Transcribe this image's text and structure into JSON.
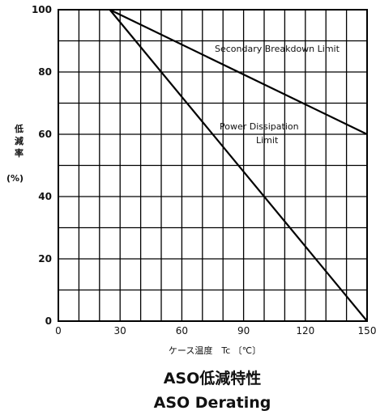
{
  "chart_data": {
    "type": "line",
    "xlim": [
      0,
      150
    ],
    "ylim": [
      0,
      100
    ],
    "x_ticks": [
      0,
      30,
      60,
      90,
      120,
      150
    ],
    "y_ticks": [
      0,
      20,
      40,
      60,
      80,
      100
    ],
    "grid": true,
    "grid_x_step": 10,
    "grid_y_step": 10,
    "series": [
      {
        "name": "Secondary Breakdown Limit",
        "x": [
          25,
          150
        ],
        "y": [
          100,
          60
        ]
      },
      {
        "name": "Power Dissipation Limit",
        "x": [
          25,
          150
        ],
        "y": [
          100,
          0
        ]
      }
    ],
    "annotations": {
      "secondary": "Secondary Breakdown Limit",
      "power_line1": "Power Dissipation",
      "power_line2": "Limit"
    },
    "ylabel_chars": [
      "低",
      "減",
      "率"
    ],
    "ylabel_unit": "(%)",
    "xlabel": "ケース温度　Tc 〔℃〕",
    "title": "ASO低減特性",
    "subtitle": "ASO Derating"
  }
}
